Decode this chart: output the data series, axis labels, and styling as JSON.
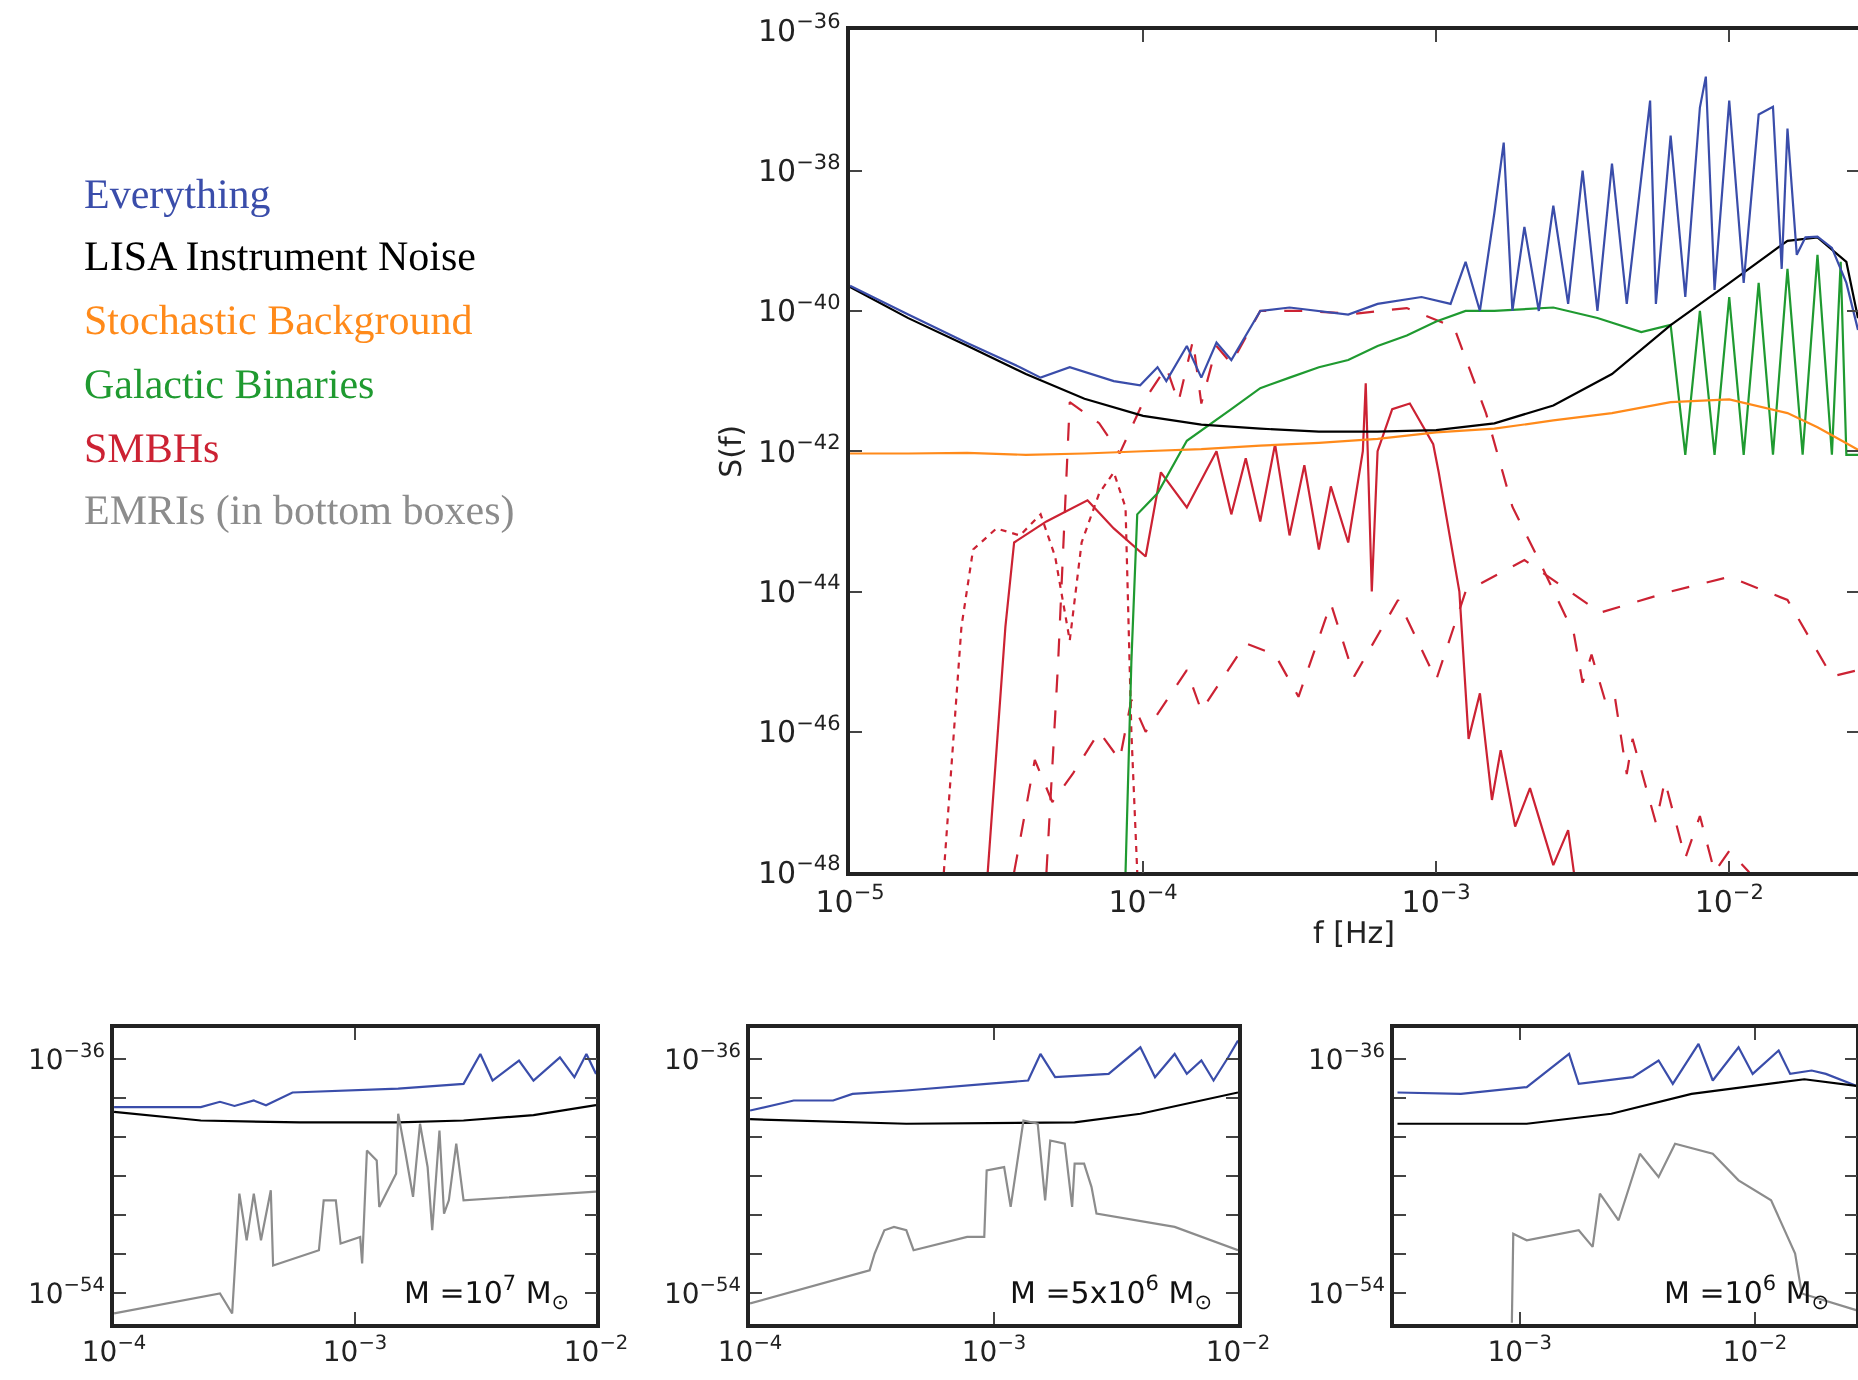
{
  "chart_data": [
    {
      "type": "line",
      "xlabel": "f [Hz]",
      "ylabel": "S(f)",
      "log": "xy",
      "legend": "left",
      "xlim": [
        1e-05,
        0.0275
      ],
      "ylim": [
        1e-48,
        1e-36
      ],
      "xticks": [
        {
          "value": 1e-05,
          "label": "10$^{−5}$"
        },
        {
          "value": 0.0001,
          "label": "10$^{−4}$"
        },
        {
          "value": 0.001,
          "label": "10$^{−3}$"
        },
        {
          "value": 0.01,
          "label": "10$^{−2}$"
        }
      ],
      "yticks": [
        {
          "value": 1e-48,
          "label": "10$^{−48}$"
        },
        {
          "value": 1e-46,
          "label": "10$^{−46}$"
        },
        {
          "value": 1e-44,
          "label": "10$^{−44}$"
        },
        {
          "value": 1e-42,
          "label": "10$^{−42}$"
        },
        {
          "value": 1e-40,
          "label": "10$^{−40}$"
        },
        {
          "value": 1e-38,
          "label": "10$^{−38}$"
        },
        {
          "value": 1e-36,
          "label": "10$^{−36}$"
        }
      ],
      "annotations": [
        "EMRIs (in bottom boxes)"
      ],
      "x": [
        1e-05,
        1.58e-05,
        2.51e-05,
        3.98e-05,
        6.31e-05,
        0.0001,
        0.000158,
        0.000251,
        0.000398,
        0.000631,
        0.001,
        0.00158,
        0.00251,
        0.00398,
        0.00631,
        0.01,
        0.0158,
        0.02,
        0.0251,
        0.0275
      ],
      "series": [
        {
          "color": "#cc2233",
          "line_style": "dotted",
          "x": [
            2.09e-05,
            2.4e-05,
            2.63e-05,
            3.16e-05,
            3.8e-05,
            4.47e-05,
            5.01e-05,
            5.62e-05,
            6.17e-05,
            7.08e-05,
            7.94e-05,
            8.71e-05,
            9.12e-05,
            9.55e-05
          ],
          "values": [
            1e-48,
            3.16e-45,
            3.98e-44,
            7.94e-44,
            6.31e-44,
            1.26e-43,
            3.16e-44,
            2e-45,
            5.01e-44,
            2.51e-43,
            5.01e-43,
            1.58e-43,
            1e-46,
            1e-48
          ]
        },
        {
          "color": "#cc2233",
          "line_style": "dashed",
          "x": [
            3.63e-05,
            4.27e-05,
            4.9e-05,
            5.75e-05,
            7.08e-05,
            8.32e-05,
            9.12e-05,
            0.000102,
            0.000141,
            0.000158,
            0.000224,
            0.000282,
            0.000339,
            0.000437,
            0.000525,
            0.000741,
            0.001,
            0.00126,
            0.002,
            0.00363,
            0.00631,
            0.01,
            0.0158,
            0.0224,
            0.0275
          ],
          "values": [
            1e-48,
            3.98e-47,
            1e-47,
            2.51e-47,
            1e-46,
            3.98e-47,
            2.88e-46,
            1e-46,
            7.59e-46,
            2e-46,
            1.82e-45,
            1.26e-45,
            3.16e-46,
            6.76e-45,
            6.17e-46,
            7.59e-45,
            5.5e-46,
            1e-44,
            2.82e-44,
            5.01e-45,
            1e-44,
            1.62e-44,
            7.59e-45,
            6.17e-46,
            7.59e-46
          ]
        },
        {
          "color": "#cc2233",
          "line_style": "solid",
          "x": [
            2.95e-05,
            3.39e-05,
            3.63e-05,
            4.68e-05,
            6.46e-05,
            7.94e-05,
            0.000102,
            0.000115,
            0.000141,
            0.000178,
            0.0002,
            0.000224,
            0.000251,
            0.000282,
            0.000316,
            0.000355,
            0.000398,
            0.000437,
            0.000501,
            0.000562,
            0.000575,
            0.000603,
            0.000631,
            0.000708,
            0.000813,
            0.000977,
            0.00102,
            0.0012,
            0.00129,
            0.00141,
            0.00155,
            0.00166,
            0.00186,
            0.00209,
            0.00251,
            0.00282,
            0.00295
          ],
          "values": [
            1e-48,
            3.16e-45,
            5.01e-44,
            1e-43,
            2e-43,
            7.94e-44,
            3.16e-44,
            5.01e-43,
            1.58e-43,
            1e-42,
            1.26e-43,
            7.94e-43,
            1e-43,
            1.26e-42,
            6.31e-44,
            6.31e-43,
            3.98e-44,
            3.16e-43,
            5.01e-44,
            1e-42,
            9.33e-42,
            1e-44,
            1e-42,
            3.98e-42,
            4.79e-42,
            1.26e-42,
            5.01e-43,
            1e-44,
            7.94e-47,
            3.55e-46,
            1.07e-47,
            5.5e-47,
            4.47e-48,
            1.58e-47,
            1.26e-48,
            3.98e-48,
            1e-48
          ]
        },
        {
          "name": "Everything",
          "color": "#3a4daa",
          "line_style": "solid",
          "x": [
            1e-05,
            1.58e-05,
            2.51e-05,
            3.8e-05,
            4.47e-05,
            5.62e-05,
            7.94e-05,
            9.77e-05,
            0.000112,
            0.00012,
            0.000141,
            0.000158,
            0.000178,
            0.0002,
            0.000251,
            0.000316,
            0.000501,
            0.000631,
            0.000891,
            0.00112,
            0.00126,
            0.00141,
            0.00158,
            0.0017,
            0.00182,
            0.002,
            0.00224,
            0.00251,
            0.00282,
            0.00316,
            0.00355,
            0.00398,
            0.00447,
            0.00537,
            0.00562,
            0.00631,
            0.00708,
            0.00794,
            0.00832,
            0.00891,
            0.01,
            0.0112,
            0.0126,
            0.0141,
            0.0151,
            0.0158,
            0.017,
            0.0182,
            0.02,
            0.0224,
            0.0251,
            0.0275
          ],
          "values": [
            2.29e-40,
            8.9e-41,
            3.5e-41,
            1.58e-41,
            1.12e-41,
            1.58e-41,
            1e-41,
            8.7e-42,
            1.58e-41,
            1e-41,
            3.16e-41,
            1.12e-41,
            3.55e-41,
            2e-41,
            1e-40,
            1.12e-40,
            8.9e-41,
            1.26e-40,
            1.58e-40,
            1.26e-40,
            5.01e-40,
            1e-40,
            2.51e-39,
            2.51e-38,
            1e-40,
            1.58e-39,
            1e-40,
            3.16e-39,
            1.26e-40,
            1e-38,
            1e-40,
            1.26e-38,
            1.26e-40,
            1e-37,
            1.26e-40,
            3.16e-38,
            1.58e-40,
            7.94e-38,
            2.19e-37,
            2e-40,
            1e-37,
            2.51e-40,
            6.31e-38,
            8.13e-38,
            3.98e-40,
            3.98e-38,
            6.31e-40,
            1.12e-39,
            1.15e-39,
            7.94e-40,
            2.51e-40,
            5.37e-41
          ]
        },
        {
          "name": "LISA Instrument Noise",
          "color": "#000000",
          "line_style": "solid",
          "values": [
            2.2e-40,
            7.9e-41,
            3.2e-41,
            1.26e-41,
            5.6e-42,
            3.2e-42,
            2.4e-42,
            2.1e-42,
            1.9e-42,
            1.9e-42,
            2e-42,
            2.5e-42,
            4.5e-42,
            1.26e-41,
            6.3e-41,
            2.5e-40,
            1e-39,
            1.12e-39,
            5e-40,
            7.9e-41
          ]
        },
        {
          "name": "Stochastic Background",
          "color": "#ff8a1a",
          "line_style": "solid",
          "values": [
            9.3e-43,
            9.3e-43,
            9.5e-43,
            8.9e-43,
            9.3e-43,
            1e-42,
            1.07e-42,
            1.2e-42,
            1.32e-42,
            1.5e-42,
            1.86e-42,
            2.1e-42,
            2.75e-42,
            3.5e-42,
            5e-42,
            5.5e-42,
            3.5e-42,
            2.2e-42,
            1.3e-42,
            1.05e-42
          ]
        },
        {
          "name": "Galactic Binaries",
          "color": "#1f9a30",
          "line_style": "solid",
          "x": [
            8.71e-05,
            9.12e-05,
            9.55e-05,
            0.000112,
            0.000141,
            0.0002,
            0.000251,
            0.000316,
            0.000398,
            0.000501,
            0.000631,
            0.000794,
            0.001,
            0.00126,
            0.00158,
            0.00251,
            0.00355,
            0.00501,
            0.00631,
            0.00708,
            0.00794,
            0.00891,
            0.01,
            0.0112,
            0.0126,
            0.0141,
            0.0158,
            0.0178,
            0.02,
            0.0224,
            0.024,
            0.0251,
            0.0275
          ],
          "values": [
            1e-48,
            1e-45,
            1.26e-43,
            2.51e-43,
            1.41e-42,
            3.98e-42,
            7.94e-42,
            1.12e-41,
            1.58e-41,
            2e-41,
            3.16e-41,
            4.47e-41,
            7.08e-41,
            1e-40,
            1e-40,
            1.12e-40,
            7.94e-41,
            5.01e-41,
            6.31e-41,
            8.91e-43,
            1e-40,
            8.91e-43,
            1.58e-40,
            8.91e-43,
            2.51e-40,
            8.91e-43,
            3.98e-40,
            8.91e-43,
            6.31e-40,
            8.91e-43,
            5.01e-40,
            8.91e-43,
            8.91e-43
          ]
        },
        {
          "name": "SMBHs",
          "color": "#cc2233",
          "line_style": "dashed",
          "x": [
            4.68e-05,
            5.13e-05,
            5.62e-05,
            7.08e-05,
            8.32e-05,
            0.0001,
            0.00012,
            0.000132,
            0.000148,
            0.000158,
            0.000178,
            0.0002,
            0.000251,
            0.000355,
            0.000525,
            0.000794,
            0.00115,
            0.00148,
            0.00182,
            0.00224,
            0.00295,
            0.00316,
            0.00339,
            0.0038,
            0.00407,
            0.00447,
            0.00468,
            0.00562,
            0.00603,
            0.00708,
            0.00794,
            0.00891,
            0.01,
            0.0117
          ],
          "values": [
            1e-48,
            1e-45,
            5.01e-42,
            2.51e-42,
            9.33e-43,
            5.01e-42,
            1.58e-41,
            5.01e-42,
            3.8e-41,
            4.79e-42,
            3.16e-41,
            1.78e-41,
            1e-40,
            1e-40,
            9.12e-41,
            1.1e-40,
            5.89e-41,
            3.47e-42,
            1.62e-43,
            2.82e-44,
            2.51e-45,
            5.01e-46,
            1.26e-45,
            2.51e-46,
            3.16e-46,
            2.51e-47,
            7.94e-47,
            5.01e-48,
            2e-47,
            1.58e-48,
            6.31e-48,
            1e-48,
            2e-48,
            1e-48
          ]
        }
      ]
    },
    {
      "type": "line",
      "log": "xy",
      "xlim": [
        0.0001,
        0.01
      ],
      "ylim": [
        3.98e-57,
        2.51e-34
      ],
      "xticks": [
        {
          "value": 0.0001,
          "label": "10$^{−4}$"
        },
        {
          "value": 0.001,
          "label": "10$^{−3}$"
        },
        {
          "value": 0.01,
          "label": "10$^{−2}$"
        }
      ],
      "yticks": [
        {
          "value": 1e-54,
          "label": "10$^{−54}$"
        },
        {
          "value": 1e-51,
          "label": null
        },
        {
          "value": 1e-48,
          "label": null
        },
        {
          "value": 1e-45,
          "label": null
        },
        {
          "value": 1e-42,
          "label": null
        },
        {
          "value": 1e-39,
          "label": null
        },
        {
          "value": 1e-36,
          "label": "10$^{−36}$"
        }
      ],
      "annotations": [
        "M =10$^{7}$ M$_{⊙}$"
      ],
      "series": [
        {
          "color": "#3a4daa",
          "x": [
            0.0001,
            0.000229,
            0.000275,
            0.000316,
            0.00038,
            0.000427,
            0.00055,
            0.00151,
            0.00282,
            0.00331,
            0.00372,
            0.00479,
            0.0055,
            0.00708,
            0.00813,
            0.00912,
            0.01
          ],
          "values": [
            2.04e-40,
            2.04e-40,
            5.25e-40,
            2.51e-40,
            6.61e-40,
            2.88e-40,
            2.75e-39,
            5.5e-39,
            1.26e-38,
            2.57e-36,
            2.29e-38,
            7.94e-37,
            2.29e-38,
            1.41e-36,
            4.17e-38,
            2.57e-36,
            7.41e-38
          ]
        },
        {
          "color": "#000000",
          "x": [
            0.0001,
            0.000229,
            0.000589,
            0.00151,
            0.00282,
            0.0055,
            0.01
          ],
          "values": [
            8.91e-41,
            1.91e-41,
            1.35e-41,
            1.35e-41,
            1.91e-41,
            4.9e-41,
            2.88e-40
          ]
        },
        {
          "color": "#8c8c8c",
          "x": [
            0.0001,
            0.000275,
            0.000309,
            0.000331,
            0.000355,
            0.00038,
            0.000407,
            0.000447,
            0.000457,
            0.000708,
            0.000741,
            0.000832,
            0.000871,
            0.00105,
            0.00107,
            0.00112,
            0.00123,
            0.00126,
            0.00148,
            0.00151,
            0.00162,
            0.00174,
            0.00186,
            0.002,
            0.00209,
            0.00224,
            0.00234,
            0.00245,
            0.00263,
            0.00282,
            0.01
          ],
          "values": [
            2.57e-56,
            8.91e-55,
            2.57e-56,
            4.37e-47,
            1.12e-50,
            4.37e-47,
            1.12e-50,
            7.94e-47,
            1.26e-52,
            1.91e-51,
            1.35e-47,
            1.35e-47,
            6.31e-51,
            2.04e-50,
            1.82e-52,
            9.33e-44,
            1.58e-44,
            4.17e-48,
            1.51e-45,
            6.31e-41,
            5.25e-44,
            2.51e-47,
            1.07e-41,
            5.01e-45,
            6.61e-50,
            3.24e-42,
            1.26e-48,
            1.35e-47,
            3.09e-43,
            1.35e-47,
            6.31e-47
          ]
        }
      ]
    },
    {
      "type": "line",
      "log": "xy",
      "xlim": [
        0.0001,
        0.01
      ],
      "ylim": [
        3.98e-57,
        2.51e-34
      ],
      "xticks": [
        {
          "value": 0.0001,
          "label": "10$^{−4}$"
        },
        {
          "value": 0.001,
          "label": "10$^{−3}$"
        },
        {
          "value": 0.01,
          "label": "10$^{−2}$"
        }
      ],
      "yticks": [
        {
          "value": 1e-54,
          "label": "10$^{−54}$"
        },
        {
          "value": 1e-51,
          "label": null
        },
        {
          "value": 1e-48,
          "label": null
        },
        {
          "value": 1e-45,
          "label": null
        },
        {
          "value": 1e-42,
          "label": null
        },
        {
          "value": 1e-39,
          "label": null
        },
        {
          "value": 1e-36,
          "label": "10$^{−36}$"
        }
      ],
      "annotations": [
        "M =5x10$^{6}$ M$_{⊙}$"
      ],
      "series": [
        {
          "color": "#3a4daa",
          "x": [
            0.0001,
            0.000151,
            0.000219,
            0.000263,
            0.000437,
            0.000933,
            0.00138,
            0.00155,
            0.00178,
            0.00295,
            0.00398,
            0.00457,
            0.0055,
            0.00617,
            0.00708,
            0.00794,
            0.00912,
            0.01
          ],
          "values": [
            1.12e-40,
            6.61e-40,
            6.61e-40,
            2.14e-39,
            3.89e-39,
            1.26e-38,
            2.29e-38,
            2.57e-36,
            4.17e-38,
            7.41e-38,
            8.32e-36,
            4.17e-38,
            2.57e-36,
            7.41e-38,
            7.94e-37,
            2.29e-38,
            1.41e-36,
            2.75e-35
          ]
        },
        {
          "color": "#000000",
          "x": [
            0.0001,
            0.000437,
            0.00214,
            0.00398,
            0.01
          ],
          "values": [
            2.4e-41,
            1.07e-41,
            1.35e-41,
            6.31e-41,
            2.75e-39
          ]
        },
        {
          "color": "#8c8c8c",
          "x": [
            0.0001,
            0.000309,
            0.000324,
            0.000355,
            0.000389,
            0.000437,
            0.000468,
            0.000776,
            0.000912,
            0.000933,
            0.0011,
            0.00117,
            0.00132,
            0.00151,
            0.00162,
            0.0017,
            0.00195,
            0.00209,
            0.00214,
            0.00234,
            0.00251,
            0.00263,
            0.0055,
            0.01
          ],
          "values": [
            1.51e-55,
            5.5e-53,
            1.07e-51,
            6.61e-50,
            1.2e-49,
            6.61e-50,
            1.91e-51,
            2.04e-50,
            2.04e-50,
            2.75e-45,
            4.9e-45,
            4.17e-48,
            1.91e-41,
            1.07e-41,
            1.35e-47,
            5.5e-43,
            3.09e-43,
            4.17e-48,
            8.91e-45,
            8.91e-45,
            1.41e-46,
            1.26e-48,
            1.2e-49,
            1.91e-51
          ]
        }
      ]
    },
    {
      "type": "line",
      "log": "xy",
      "xlim": [
        0.000292,
        0.0269
      ],
      "ylim": [
        3.98e-57,
        2.51e-34
      ],
      "xticks": [
        {
          "value": 0.001,
          "label": "10$^{−3}$"
        },
        {
          "value": 0.01,
          "label": "10$^{−2}$"
        }
      ],
      "yticks": [
        {
          "value": 1e-54,
          "label": "10$^{−54}$"
        },
        {
          "value": 1e-51,
          "label": null
        },
        {
          "value": 1e-48,
          "label": null
        },
        {
          "value": 1e-45,
          "label": null
        },
        {
          "value": 1e-42,
          "label": null
        },
        {
          "value": 1e-39,
          "label": null
        },
        {
          "value": 1e-36,
          "label": "10$^{−36}$"
        }
      ],
      "annotations": [
        "M =10$^{6}$ M$_{⊙}$"
      ],
      "series": [
        {
          "color": "#3a4daa",
          "x": [
            0.000302,
            0.000562,
            0.00107,
            0.00162,
            0.00178,
            0.00302,
            0.00389,
            0.00447,
            0.00575,
            0.00661,
            0.00851,
            0.00977,
            0.0126,
            0.0141,
            0.0174,
            0.02,
            0.0269
          ],
          "values": [
            2.75e-39,
            2.14e-39,
            7.08e-39,
            2.57e-36,
            1.26e-38,
            4.17e-38,
            7.94e-37,
            1.26e-38,
            1.51e-35,
            2.29e-38,
            8.32e-36,
            7.41e-38,
            4.68e-36,
            7.41e-38,
            1.35e-37,
            7.41e-38,
            8.91e-39
          ]
        },
        {
          "color": "#000000",
          "x": [
            0.000302,
            0.00107,
            0.00245,
            0.00537,
            0.0162,
            0.0269
          ],
          "values": [
            1.07e-41,
            1.07e-41,
            6.31e-41,
            2.14e-39,
            2.88e-38,
            8.91e-39
          ]
        },
        {
          "color": "#8c8c8c",
          "x": [
            0.000925,
            0.000938,
            0.00107,
            0.00178,
            0.00204,
            0.00219,
            0.00263,
            0.00324,
            0.00389,
            0.00457,
            0.00661,
            0.00851,
            0.0117,
            0.0148,
            0.0158,
            0.0269
          ],
          "values": [
            5.01e-57,
            3.63e-50,
            1.12e-50,
            6.61e-50,
            3.47e-51,
            4.37e-47,
            3.89e-49,
            5.25e-44,
            8.32e-46,
            3.09e-43,
            5.25e-44,
            4.68e-46,
            1.35e-47,
            1.07e-51,
            8.91e-55,
            4.68e-56
          ]
        }
      ]
    }
  ]
}
